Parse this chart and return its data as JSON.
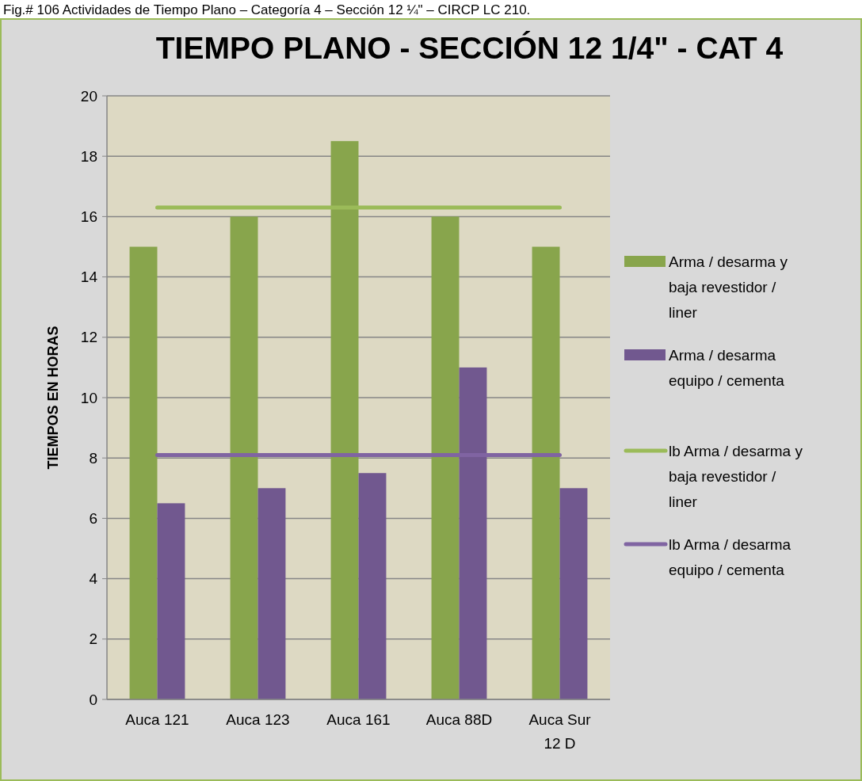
{
  "chart_data": {
    "type": "bar",
    "title": "TIEMPO PLANO - SECCIÓN 12 1/4\" - CAT 4",
    "annotations": [
      "Fig.# 106 Actividades de Tiempo Plano – Categoría 4 – Sección 12 ¼\" – CIRCP LC 210."
    ],
    "ylabel": "TIEMPOS EN HORAS",
    "categories": [
      "Auca 121",
      "Auca 123",
      "Auca 161",
      "Auca 88D",
      "Auca Sur 12 D"
    ],
    "series": [
      {
        "name": "Arma / desarma y baja revestidor / liner",
        "color": "#88a54c",
        "values": [
          15,
          16,
          18.5,
          16,
          15
        ]
      },
      {
        "name": "Arma / desarma equipo / cementa",
        "color": "#71588f",
        "values": [
          6.5,
          7,
          7.5,
          11,
          7
        ]
      },
      {
        "type": "line",
        "name": "lb Arma / desarma y baja revestidor / liner",
        "color": "#9bbb59",
        "values": [
          16.3,
          16.3,
          16.3,
          16.3,
          16.3
        ]
      },
      {
        "type": "line",
        "name": "lb Arma / desarma equipo / cementa",
        "color": "#8064a2",
        "values": [
          8.1,
          8.1,
          8.1,
          8.1,
          8.1
        ]
      }
    ],
    "ylim": [
      0,
      20
    ],
    "yticks": [
      0,
      2,
      4,
      6,
      8,
      10,
      12,
      14,
      16,
      18,
      20
    ],
    "grid": "y",
    "legend": "right"
  }
}
